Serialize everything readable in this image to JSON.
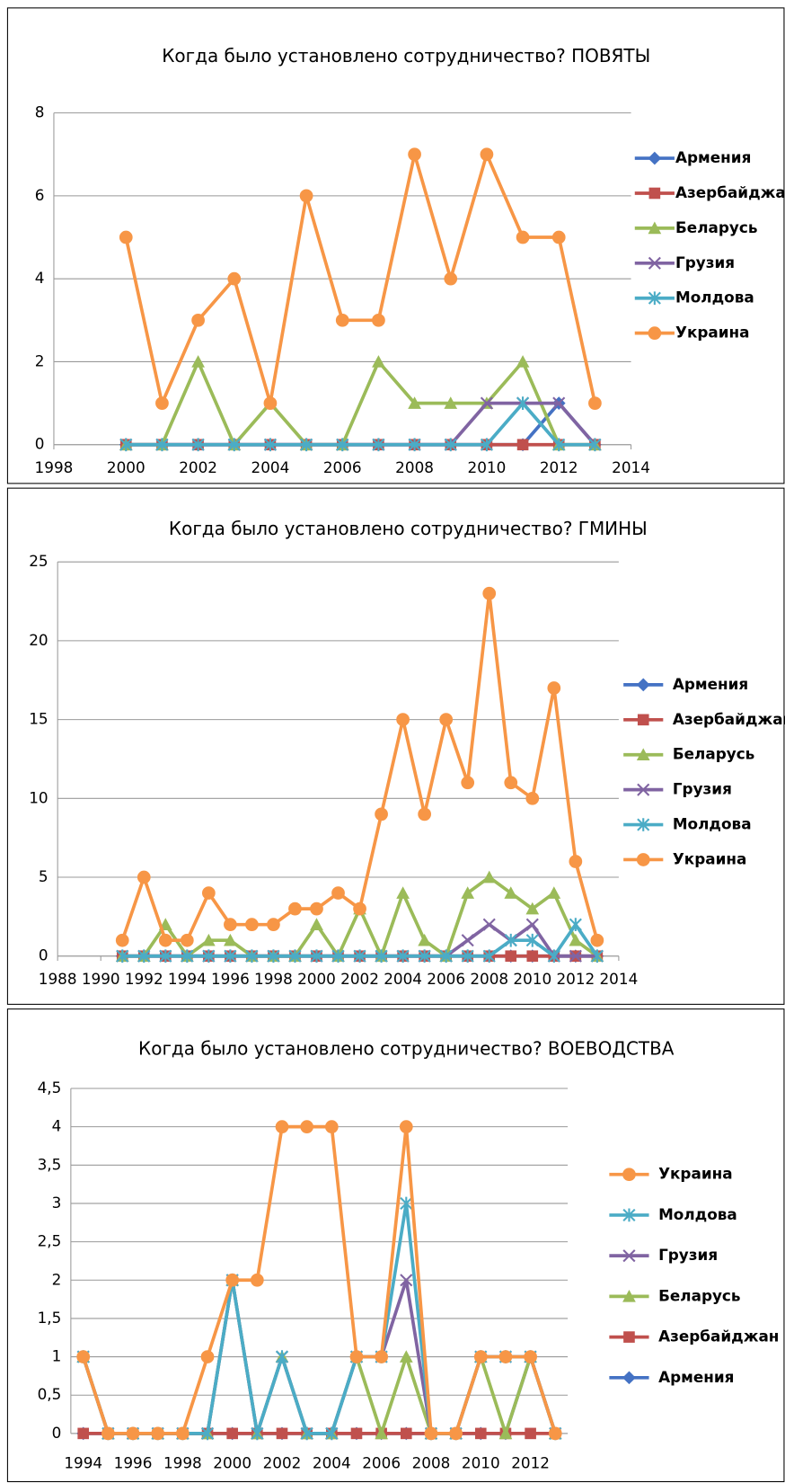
{
  "chart_data": [
    {
      "type": "line",
      "title": "Когда было установлено сотрудничество? ПОВЯТЫ",
      "x": [
        2000,
        2001,
        2002,
        2003,
        2004,
        2005,
        2006,
        2007,
        2008,
        2009,
        2010,
        2011,
        2012,
        2013
      ],
      "xlim": [
        1998,
        2014
      ],
      "xticks": [
        1998,
        2000,
        2002,
        2004,
        2006,
        2008,
        2010,
        2012,
        2014
      ],
      "ylim": [
        0,
        8
      ],
      "yticks": [
        0,
        2,
        4,
        6,
        8
      ],
      "grid": true,
      "legend": "right",
      "series": [
        {
          "name": "Армения",
          "color": "#4472c4",
          "marker": "diamond",
          "values": [
            0,
            0,
            0,
            0,
            0,
            0,
            0,
            0,
            0,
            0,
            0,
            0,
            1,
            0
          ]
        },
        {
          "name": "Азербайджан",
          "color": "#c0504d",
          "marker": "square",
          "values": [
            0,
            0,
            0,
            0,
            0,
            0,
            0,
            0,
            0,
            0,
            0,
            0,
            0,
            0
          ]
        },
        {
          "name": "Беларусь",
          "color": "#9bbb59",
          "marker": "triangle",
          "values": [
            0,
            0,
            2,
            0,
            1,
            0,
            0,
            2,
            1,
            1,
            1,
            2,
            0,
            0
          ]
        },
        {
          "name": "Грузия",
          "color": "#8064a2",
          "marker": "x",
          "values": [
            0,
            0,
            0,
            0,
            0,
            0,
            0,
            0,
            0,
            0,
            1,
            1,
            1,
            0
          ]
        },
        {
          "name": "Молдова",
          "color": "#4bacc6",
          "marker": "star",
          "values": [
            0,
            0,
            0,
            0,
            0,
            0,
            0,
            0,
            0,
            0,
            0,
            1,
            0,
            0
          ]
        },
        {
          "name": "Украина",
          "color": "#f79646",
          "marker": "circle",
          "values": [
            5,
            1,
            3,
            4,
            1,
            6,
            3,
            3,
            7,
            4,
            7,
            5,
            5,
            1
          ]
        }
      ]
    },
    {
      "type": "line",
      "title": "Когда было установлено сотрудничество? ГМИНЫ",
      "x": [
        1991,
        1992,
        1993,
        1994,
        1995,
        1996,
        1997,
        1998,
        1999,
        2000,
        2001,
        2002,
        2003,
        2004,
        2005,
        2006,
        2007,
        2008,
        2009,
        2010,
        2011,
        2012,
        2013
      ],
      "xlim": [
        1988,
        2014
      ],
      "xticks": [
        1988,
        1990,
        1992,
        1994,
        1996,
        1998,
        2000,
        2002,
        2004,
        2006,
        2008,
        2010,
        2012,
        2014
      ],
      "ylim": [
        0,
        25
      ],
      "yticks": [
        0,
        5,
        10,
        15,
        20,
        25
      ],
      "grid": true,
      "legend": "right",
      "series": [
        {
          "name": "Армения",
          "color": "#4472c4",
          "marker": "diamond",
          "values": [
            0,
            0,
            0,
            0,
            0,
            0,
            0,
            0,
            0,
            0,
            0,
            0,
            0,
            0,
            0,
            0,
            0,
            0,
            0,
            0,
            0,
            0,
            0
          ]
        },
        {
          "name": "Азербайджан",
          "color": "#c0504d",
          "marker": "square",
          "values": [
            0,
            0,
            0,
            0,
            0,
            0,
            0,
            0,
            0,
            0,
            0,
            0,
            0,
            0,
            0,
            0,
            0,
            0,
            0,
            0,
            0,
            0,
            0
          ]
        },
        {
          "name": "Беларусь",
          "color": "#9bbb59",
          "marker": "triangle",
          "values": [
            0,
            0,
            2,
            0,
            1,
            1,
            0,
            0,
            0,
            2,
            0,
            3,
            0,
            4,
            1,
            0,
            4,
            5,
            4,
            3,
            4,
            1,
            0
          ]
        },
        {
          "name": "Грузия",
          "color": "#8064a2",
          "marker": "x",
          "values": [
            0,
            0,
            0,
            0,
            0,
            0,
            0,
            0,
            0,
            0,
            0,
            0,
            0,
            0,
            0,
            0,
            1,
            2,
            1,
            2,
            0,
            0,
            0
          ]
        },
        {
          "name": "Молдова",
          "color": "#4bacc6",
          "marker": "star",
          "values": [
            0,
            0,
            0,
            0,
            0,
            0,
            0,
            0,
            0,
            0,
            0,
            0,
            0,
            0,
            0,
            0,
            0,
            0,
            1,
            1,
            0,
            2,
            0
          ]
        },
        {
          "name": "Украина",
          "color": "#f79646",
          "marker": "circle",
          "values": [
            1,
            5,
            1,
            1,
            4,
            2,
            2,
            2,
            3,
            3,
            4,
            3,
            9,
            15,
            9,
            15,
            11,
            23,
            11,
            10,
            17,
            6,
            1
          ]
        }
      ]
    },
    {
      "type": "line",
      "title": "Когда было установлено сотрудничество? ВОЕВОДСТВА",
      "categories": [
        "1994",
        null,
        "1996",
        null,
        "1998",
        null,
        "2000",
        null,
        "2002",
        null,
        "2004",
        null,
        "2006",
        null,
        "2008",
        null,
        "2010",
        null,
        "2012",
        null
      ],
      "ylim": [
        0,
        4.5
      ],
      "yticks": [
        0,
        {
          "value": 0.5,
          "label": "0,5"
        },
        1,
        {
          "value": 1.5,
          "label": "1,5"
        },
        2,
        {
          "value": 2.5,
          "label": "2,5"
        },
        3,
        {
          "value": 3.5,
          "label": "3,5"
        },
        4,
        {
          "value": 4.5,
          "label": "4,5"
        }
      ],
      "grid": true,
      "legend": "right",
      "series": [
        {
          "name": "Армения",
          "color": "#4472c4",
          "marker": "diamond",
          "values": [
            0,
            0,
            0,
            0,
            0,
            0,
            0,
            0,
            0,
            0,
            0,
            0,
            0,
            0,
            0,
            0,
            0,
            0,
            1,
            0
          ]
        },
        {
          "name": "Азербайджан",
          "color": "#c0504d",
          "marker": "square",
          "values": [
            0,
            0,
            0,
            0,
            0,
            0,
            0,
            0,
            0,
            0,
            0,
            0,
            0,
            0,
            0,
            0,
            0,
            0,
            0,
            0
          ]
        },
        {
          "name": "Беларусь",
          "color": "#9bbb59",
          "marker": "triangle",
          "values": [
            1,
            0,
            0,
            0,
            0,
            0,
            2,
            0,
            1,
            0,
            0,
            1,
            0,
            1,
            0,
            0,
            1,
            0,
            1,
            0
          ]
        },
        {
          "name": "Грузия",
          "color": "#8064a2",
          "marker": "x",
          "values": [
            1,
            0,
            0,
            0,
            0,
            0,
            2,
            0,
            1,
            0,
            0,
            1,
            1,
            2,
            0,
            0,
            1,
            1,
            1,
            0
          ]
        },
        {
          "name": "Молдова",
          "color": "#4bacc6",
          "marker": "star",
          "values": [
            1,
            0,
            0,
            0,
            0,
            0,
            2,
            0,
            1,
            0,
            0,
            1,
            1,
            3,
            0,
            0,
            1,
            1,
            1,
            0
          ]
        },
        {
          "name": "Украина",
          "color": "#f79646",
          "marker": "circle",
          "values": [
            1,
            0,
            0,
            0,
            0,
            1,
            2,
            2,
            4,
            4,
            4,
            1,
            1,
            4,
            0,
            0,
            1,
            1,
            1,
            0
          ]
        }
      ]
    }
  ]
}
